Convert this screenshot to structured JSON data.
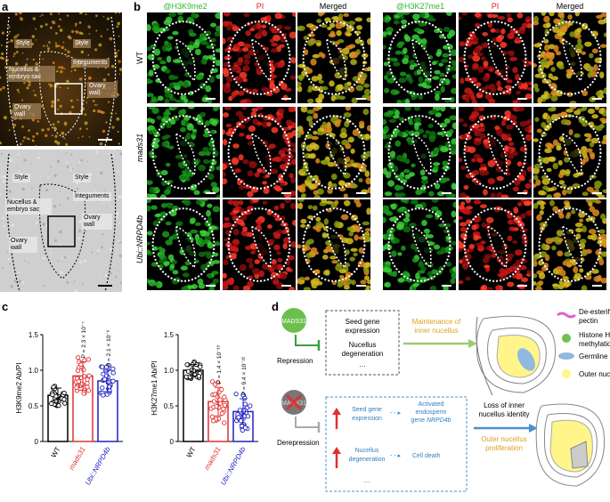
{
  "panel_labels": {
    "a": "a",
    "b": "b",
    "c": "c",
    "d": "d"
  },
  "panel_a": {
    "top_tags": {
      "style_left": "Style",
      "style_right": "Style",
      "integuments": "Integuments",
      "nucellus": "Nucellus & embryo sac",
      "ovary_wall_right": "Ovary wall",
      "ovary_wall_left": "Ovary wall"
    },
    "bottom_tags": {
      "style_left": "Style",
      "style_right": "Style",
      "integuments": "Integuments",
      "nucellus": "Nucellus & embryo sac",
      "ovary_wall_right": "Ovary wall",
      "ovary_wall_left": "Ovary wall"
    }
  },
  "panel_b": {
    "col_headers_left": [
      "@H3K9me2",
      "PI",
      "Merged"
    ],
    "col_headers_right": [
      "@H3K27me1",
      "PI",
      "Merged"
    ],
    "header_colors": [
      "#2db52d",
      "#e02020",
      "#000000"
    ],
    "row_labels": [
      "WT",
      "mads31",
      "Ubi::NRPD4b"
    ]
  },
  "panel_c": {
    "chart_data": [
      {
        "type": "bar",
        "ylabel": "H3K9me2 Ab/PI",
        "ylim": [
          0,
          1.5
        ],
        "yticks": [
          "0",
          "0.5",
          "1.0",
          "1.5"
        ],
        "categories": [
          "WT",
          "mads31",
          "Ubi::NRPD4b"
        ],
        "category_colors": [
          "#000000",
          "#e03030",
          "#2020c0"
        ],
        "values": [
          0.65,
          0.92,
          0.85
        ],
        "errors": [
          0.1,
          0.2,
          0.15
        ],
        "pvalues": [
          "",
          "P = 2.3 × 10⁻⁷",
          "P = 2.1 × 10⁻⁶"
        ]
      },
      {
        "type": "bar",
        "ylabel": "H3K27me1 Ab/PI",
        "ylim": [
          0,
          1.5
        ],
        "yticks": [
          "0",
          "0.5",
          "1.0",
          "1.5"
        ],
        "categories": [
          "WT",
          "mads31",
          "Ubi::NRPD4b"
        ],
        "category_colors": [
          "#000000",
          "#e03030",
          "#2020c0"
        ],
        "values": [
          1.0,
          0.56,
          0.42
        ],
        "errors": [
          0.08,
          0.2,
          0.18
        ],
        "pvalues": [
          "",
          "P = 1.4 × 10⁻¹³",
          "P = 9.4 × 10⁻²²"
        ]
      }
    ]
  },
  "panel_d": {
    "top": {
      "gene": "MADS31",
      "action": "Repression",
      "box_lines": [
        "Seed gene expression",
        "Nucellus degeneration",
        "…"
      ],
      "arrow_text": "Maintenance of inner nucellus"
    },
    "bottom": {
      "gene": "MADS31",
      "action": "Derepression",
      "seed_gene": "Seed gene expression",
      "activated": "Activated endosperm gene NRPD4b",
      "nucellus_deg": "Nucellus degeneration",
      "cell_death": "Cell death",
      "ellipsis": "…",
      "loss_text": "Loss of inner nucellus identity",
      "outer_text": "Outer nucellus proliferation"
    },
    "legend": [
      {
        "label": "De-esterified pectin",
        "color": "#e060d0"
      },
      {
        "label": "Histone H3 methylation",
        "color": "#70c050"
      },
      {
        "label": "Germline",
        "color": "#90b8e0"
      },
      {
        "label": "Outer nucellus",
        "color": "#fff58a"
      }
    ]
  }
}
